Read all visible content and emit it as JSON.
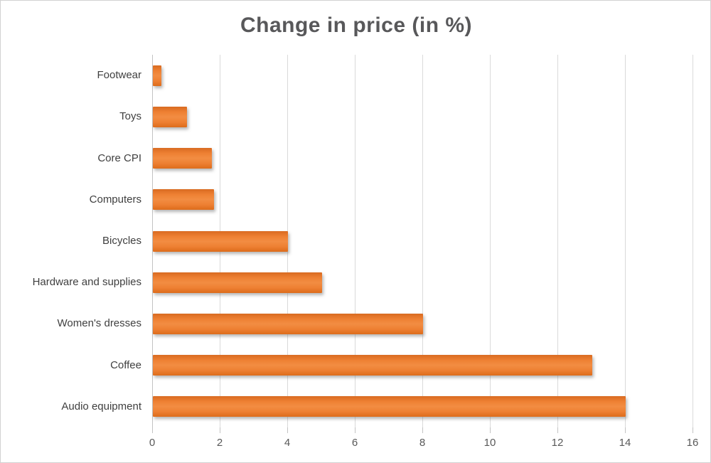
{
  "chart_data": {
    "type": "bar",
    "orientation": "horizontal",
    "title": "Change in price (in %)",
    "categories": [
      "Footwear",
      "Toys",
      "Core CPI",
      "Computers",
      "Bicycles",
      "Hardware and supplies",
      "Women's dresses",
      "Coffee",
      "Audio equipment"
    ],
    "values": [
      0.25,
      1,
      1.75,
      1.8,
      4,
      5,
      8,
      13,
      14
    ],
    "xlabel": "",
    "ylabel": "",
    "xlim": [
      0,
      16
    ],
    "x_ticks": [
      0,
      2,
      4,
      6,
      8,
      10,
      12,
      14,
      16
    ],
    "grid": true,
    "legend": false,
    "bar_color": "#ED7D31",
    "title_color": "#58585a",
    "background": "#FFFFFF"
  }
}
